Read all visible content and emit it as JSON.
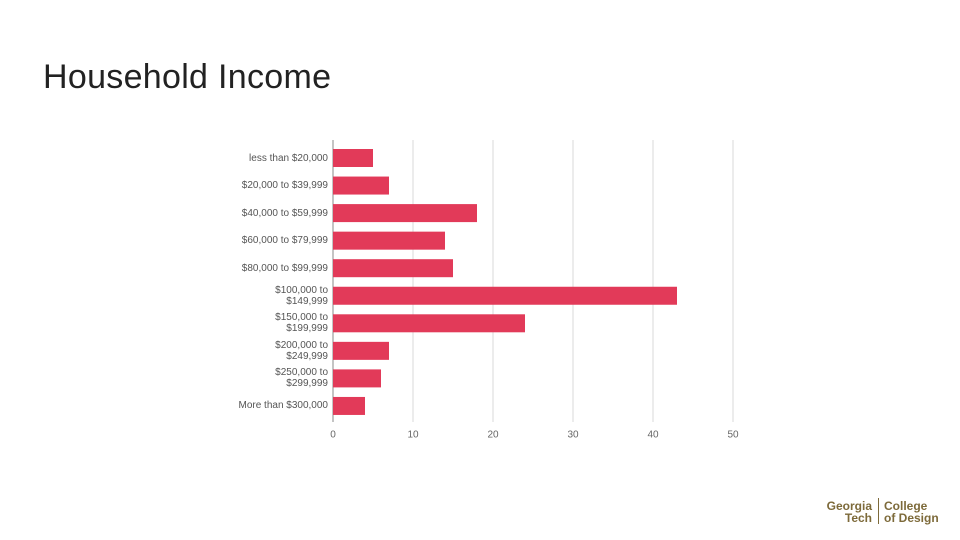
{
  "chart_data": {
    "type": "barh",
    "title": "Household Income",
    "categories": [
      "less than $20,000",
      "$20,000 to $39,999",
      "$40,000 to $59,999",
      "$60,000 to $79,999",
      "$80,000 to $99,999",
      "$100,000 to $149,999",
      "$150,000 to $199,999",
      "$200,000 to $249,999",
      "$250,000 to $299,999",
      "More than $300,000"
    ],
    "values": [
      5,
      7,
      18,
      14,
      15,
      43,
      24,
      7,
      6,
      4
    ],
    "color": "#e23a59",
    "xlim": [
      0,
      50
    ],
    "xticks": [
      0,
      10,
      20,
      30,
      40,
      50
    ],
    "grid": true
  },
  "logo": {
    "left": [
      "Georgia",
      "Tech"
    ],
    "right": [
      "College",
      "of Design"
    ]
  }
}
